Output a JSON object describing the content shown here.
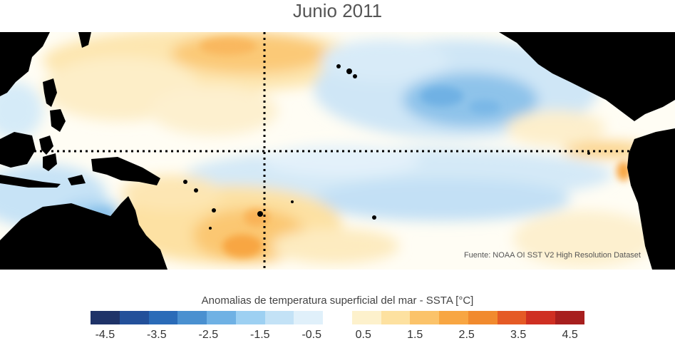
{
  "title": "Junio 2011",
  "credit": "Fuente: NOAA OI SST V2 High Resolution Dataset",
  "colorbar_label": "Anomalias de temperatura superficial del mar - SSTA  [°C]",
  "colorbar": {
    "colors": [
      "#1f3368",
      "#23509a",
      "#2a6bb8",
      "#4a90d0",
      "#6fb1e4",
      "#9dd0f2",
      "#c3e2f6",
      "#e0f0fa",
      "#ffffff",
      "#fdf1cc",
      "#fde1a0",
      "#fbc36a",
      "#f8a642",
      "#f18a2e",
      "#e55a25",
      "#cf2f22",
      "#a71f1e"
    ],
    "tick_labels": [
      "-4.5",
      "-3.5",
      "-2.5",
      "-1.5",
      "-0.5",
      "0.5",
      "1.5",
      "2.5",
      "3.5",
      "4.5"
    ],
    "tick_values": [
      -4.5,
      -3.5,
      -2.5,
      -1.5,
      -0.5,
      0.5,
      1.5,
      2.5,
      3.5,
      4.5
    ],
    "range": [
      -4.5,
      4.5
    ]
  },
  "map": {
    "region": "Tropical Pacific",
    "reference_lines": [
      "Equator",
      "Dateline (180°)"
    ],
    "colors": {
      "land": "#000000",
      "warm_light": "#fdf1cc",
      "warm_mid": "#fbd38a",
      "warm_strong": "#f8a642",
      "cool_light": "#e0f0fa",
      "cool_mid": "#b8daf2",
      "cool_strong": "#6fb1e4"
    }
  }
}
